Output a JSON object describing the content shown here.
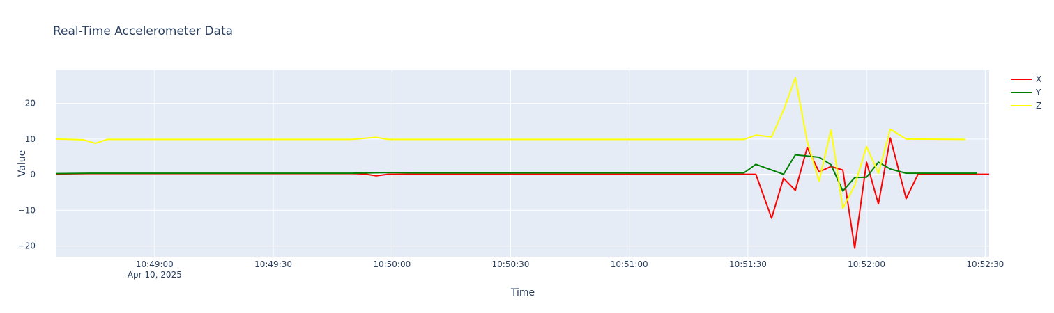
{
  "chart_data": {
    "type": "line",
    "title": "Real-Time Accelerometer Data",
    "xlabel": "Time",
    "ylabel": "Value",
    "x_date_label": "Apr 10, 2025",
    "xlim": [
      "10:48:35",
      "10:52:31"
    ],
    "ylim": [
      -23,
      29.5
    ],
    "x_ticks": [
      "10:49:00",
      "10:49:30",
      "10:50:00",
      "10:50:30",
      "10:51:00",
      "10:51:30",
      "10:52:00",
      "10:52:30"
    ],
    "y_ticks": [
      -20,
      -10,
      0,
      10,
      20
    ],
    "y_tick_labels": [
      "−20",
      "−10",
      "0",
      "10",
      "20"
    ],
    "grid": true,
    "legend_position": "top-right",
    "series": [
      {
        "name": "X",
        "color": "#ff0000",
        "points": [
          [
            "10:48:35",
            0.2
          ],
          [
            "10:48:45",
            0.3
          ],
          [
            "10:49:50",
            0.3
          ],
          [
            "10:49:53",
            0.2
          ],
          [
            "10:49:56",
            -0.3
          ],
          [
            "10:49:59",
            0.1
          ],
          [
            "10:50:30",
            0.1
          ],
          [
            "10:51:30",
            0.1
          ],
          [
            "10:51:32",
            0.1
          ],
          [
            "10:51:36",
            -12.2
          ],
          [
            "10:51:39",
            -1.0
          ],
          [
            "10:51:42",
            -4.4
          ],
          [
            "10:51:45",
            7.6
          ],
          [
            "10:51:48",
            0.8
          ],
          [
            "10:51:51",
            2.3
          ],
          [
            "10:51:54",
            1.3
          ],
          [
            "10:51:57",
            -20.6
          ],
          [
            "10:52:00",
            3.5
          ],
          [
            "10:52:03",
            -8.2
          ],
          [
            "10:52:06",
            10.3
          ],
          [
            "10:52:10",
            -6.7
          ],
          [
            "10:52:13",
            0.1
          ],
          [
            "10:52:31",
            0.1
          ]
        ]
      },
      {
        "name": "Y",
        "color": "#008000",
        "points": [
          [
            "10:48:35",
            0.3
          ],
          [
            "10:48:45",
            0.4
          ],
          [
            "10:49:50",
            0.4
          ],
          [
            "10:49:59",
            0.6
          ],
          [
            "10:50:05",
            0.5
          ],
          [
            "10:51:29",
            0.5
          ],
          [
            "10:51:32",
            2.9
          ],
          [
            "10:51:39",
            0.1
          ],
          [
            "10:51:42",
            5.6
          ],
          [
            "10:51:48",
            4.9
          ],
          [
            "10:51:51",
            2.8
          ],
          [
            "10:51:54",
            -4.6
          ],
          [
            "10:51:57",
            -0.8
          ],
          [
            "10:52:00",
            -0.7
          ],
          [
            "10:52:03",
            3.5
          ],
          [
            "10:52:06",
            1.6
          ],
          [
            "10:52:10",
            0.4
          ],
          [
            "10:52:28",
            0.4
          ]
        ]
      },
      {
        "name": "Z",
        "color": "#ffff00",
        "points": [
          [
            "10:48:35",
            10.0
          ],
          [
            "10:48:42",
            9.8
          ],
          [
            "10:48:45",
            8.8
          ],
          [
            "10:48:48",
            9.9
          ],
          [
            "10:49:50",
            9.9
          ],
          [
            "10:49:56",
            10.5
          ],
          [
            "10:49:59",
            9.9
          ],
          [
            "10:51:29",
            9.9
          ],
          [
            "10:51:32",
            11.1
          ],
          [
            "10:51:36",
            10.6
          ],
          [
            "10:51:39",
            18.1
          ],
          [
            "10:51:42",
            27.2
          ],
          [
            "10:51:45",
            9.3
          ],
          [
            "10:51:48",
            -1.8
          ],
          [
            "10:51:51",
            12.6
          ],
          [
            "10:51:54",
            -9.4
          ],
          [
            "10:51:57",
            -3.0
          ],
          [
            "10:52:00",
            7.9
          ],
          [
            "10:52:03",
            0.4
          ],
          [
            "10:52:06",
            12.8
          ],
          [
            "10:52:10",
            10.0
          ],
          [
            "10:52:25",
            9.9
          ]
        ]
      }
    ]
  }
}
